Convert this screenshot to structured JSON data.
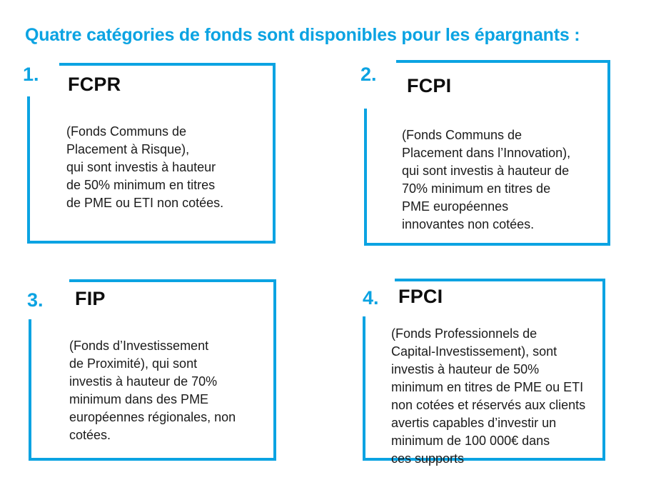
{
  "theme": {
    "accent_color": "#0BA3E2",
    "text_color": "#1b1b1b",
    "background_color": "#ffffff"
  },
  "title": "Quatre catégories de fonds sont disponibles pour les épargnants :",
  "boxes": [
    {
      "number": "1.",
      "name": "FCPR",
      "description": "(Fonds Communs de\nPlacement à Risque),\nqui sont investis à hauteur\nde 50% minimum en titres\nde PME ou ETI non cotées."
    },
    {
      "number": "2.",
      "name": "FCPI",
      "description": "(Fonds Communs de\nPlacement dans l’Innovation),\nqui sont investis à hauteur de\n70% minimum en titres de\nPME européennes\ninnovantes non cotées."
    },
    {
      "number": "3.",
      "name": "FIP",
      "description": "(Fonds d’Investissement\nde Proximité), qui sont\ninvestis à hauteur de 70%\nminimum dans des PME\neuropéennes régionales, non\ncotées."
    },
    {
      "number": "4.",
      "name": "FPCI",
      "description": "(Fonds Professionnels de\nCapital-Investissement), sont\ninvestis à hauteur de 50%\nminimum en titres de PME ou ETI\nnon cotées et réservés aux clients\navertis capables d’investir un\nminimum de 100 000€ dans\nces supports"
    }
  ]
}
